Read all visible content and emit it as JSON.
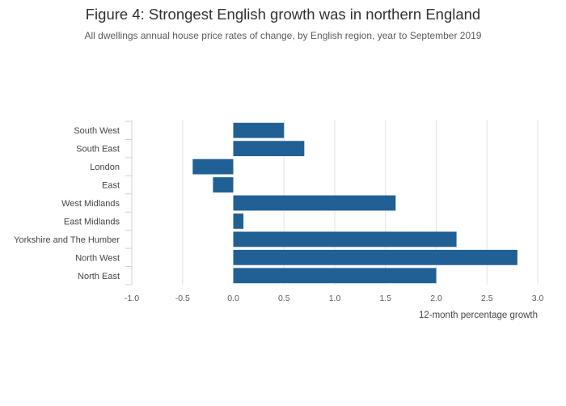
{
  "chart_data": {
    "type": "bar",
    "orientation": "horizontal",
    "title": "Figure 4: Strongest English growth was in northern England",
    "subtitle": "All dwellings annual house price rates of change, by English region, year to September 2019",
    "xlabel": "12-month percentage growth",
    "ylabel": "",
    "categories": [
      "South West",
      "South East",
      "London",
      "East",
      "West Midlands",
      "East Midlands",
      "Yorkshire and The Humber",
      "North West",
      "North East"
    ],
    "values": [
      0.5,
      0.7,
      -0.4,
      -0.2,
      1.6,
      0.1,
      2.2,
      2.8,
      2.0
    ],
    "xlim": [
      -1.0,
      3.0
    ],
    "xticks": [
      "-1.0",
      "-0.5",
      "0.0",
      "0.5",
      "1.0",
      "1.5",
      "2.0",
      "2.5",
      "3.0"
    ],
    "grid": true,
    "bar_color": "#206095"
  }
}
